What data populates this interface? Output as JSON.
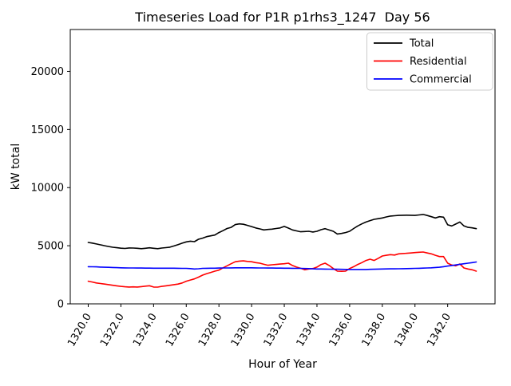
{
  "title": "Timeseries Load for P1R p1rhs3_1247  Day 56",
  "background": "#ffffff",
  "chart_data": {
    "type": "line",
    "title": "Timeseries Load for P1R p1rhs3_1247  Day 56",
    "xlabel": "Hour of Year",
    "ylabel": "kW total",
    "xlim": [
      1318.9,
      1344.9
    ],
    "ylim": [
      0,
      23600
    ],
    "grid": false,
    "legend_position": "upper right",
    "xticks": [
      1320,
      1322,
      1324,
      1326,
      1328,
      1330,
      1332,
      1334,
      1336,
      1338,
      1340,
      1342
    ],
    "xtick_labels": [
      "1320.0",
      "1322.0",
      "1324.0",
      "1326.0",
      "1328.0",
      "1330.0",
      "1332.0",
      "1334.0",
      "1336.0",
      "1338.0",
      "1340.0",
      "1342.0"
    ],
    "yticks": [
      0,
      5000,
      10000,
      15000,
      20000
    ],
    "ytick_labels": [
      "0",
      "5000",
      "10000",
      "15000",
      "20000"
    ],
    "x_start": 1320.0,
    "x_step": 0.25,
    "points_per_series": 96,
    "series": [
      {
        "name": "Total",
        "color": "#000000",
        "values": [
          5280,
          5230,
          5150,
          5080,
          5000,
          4930,
          4870,
          4830,
          4790,
          4770,
          4810,
          4800,
          4780,
          4750,
          4780,
          4820,
          4780,
          4750,
          4800,
          4840,
          4880,
          4980,
          5100,
          5220,
          5330,
          5390,
          5350,
          5560,
          5650,
          5780,
          5850,
          5920,
          6130,
          6300,
          6480,
          6580,
          6820,
          6880,
          6850,
          6750,
          6650,
          6530,
          6450,
          6360,
          6400,
          6430,
          6480,
          6530,
          6660,
          6520,
          6360,
          6280,
          6200,
          6220,
          6240,
          6180,
          6240,
          6380,
          6470,
          6350,
          6240,
          6010,
          6060,
          6130,
          6240,
          6480,
          6700,
          6880,
          7040,
          7160,
          7270,
          7330,
          7390,
          7480,
          7550,
          7580,
          7610,
          7620,
          7630,
          7620,
          7610,
          7650,
          7690,
          7600,
          7500,
          7390,
          7500,
          7460,
          6800,
          6700,
          6870,
          7040,
          6700,
          6580,
          6540,
          6470
        ]
      },
      {
        "name": "Residential",
        "color": "#ff0000",
        "values": [
          1950,
          1880,
          1800,
          1750,
          1700,
          1650,
          1600,
          1550,
          1500,
          1470,
          1450,
          1460,
          1450,
          1480,
          1520,
          1560,
          1450,
          1440,
          1500,
          1550,
          1600,
          1650,
          1700,
          1800,
          1950,
          2050,
          2150,
          2300,
          2470,
          2600,
          2700,
          2810,
          2900,
          3100,
          3270,
          3450,
          3620,
          3680,
          3700,
          3650,
          3620,
          3550,
          3500,
          3400,
          3320,
          3360,
          3390,
          3420,
          3450,
          3500,
          3300,
          3160,
          3060,
          2930,
          3000,
          3040,
          3160,
          3380,
          3500,
          3300,
          3040,
          2810,
          2800,
          2810,
          3040,
          3200,
          3390,
          3550,
          3730,
          3840,
          3730,
          3920,
          4115,
          4180,
          4230,
          4200,
          4300,
          4330,
          4350,
          4380,
          4410,
          4440,
          4460,
          4380,
          4300,
          4180,
          4070,
          4070,
          3500,
          3340,
          3270,
          3430,
          3090,
          3000,
          2930,
          2810
        ]
      },
      {
        "name": "Commercial",
        "color": "#0000ff",
        "values": [
          3200,
          3190,
          3180,
          3165,
          3150,
          3140,
          3130,
          3115,
          3100,
          3095,
          3090,
          3085,
          3080,
          3078,
          3075,
          3072,
          3070,
          3070,
          3070,
          3070,
          3070,
          3065,
          3060,
          3055,
          3050,
          3030,
          3000,
          3020,
          3050,
          3060,
          3065,
          3070,
          3080,
          3085,
          3090,
          3095,
          3100,
          3100,
          3100,
          3100,
          3100,
          3095,
          3090,
          3085,
          3080,
          3078,
          3075,
          3072,
          3070,
          3065,
          3060,
          3055,
          3050,
          3040,
          3030,
          3015,
          3000,
          2995,
          2990,
          2985,
          2980,
          2975,
          2970,
          2965,
          2960,
          2960,
          2960,
          2960,
          2960,
          2970,
          2980,
          2990,
          3000,
          3005,
          3010,
          3015,
          3020,
          3028,
          3035,
          3042,
          3050,
          3063,
          3075,
          3088,
          3100,
          3125,
          3150,
          3200,
          3250,
          3300,
          3350,
          3400,
          3450,
          3500,
          3550,
          3600
        ]
      }
    ]
  }
}
